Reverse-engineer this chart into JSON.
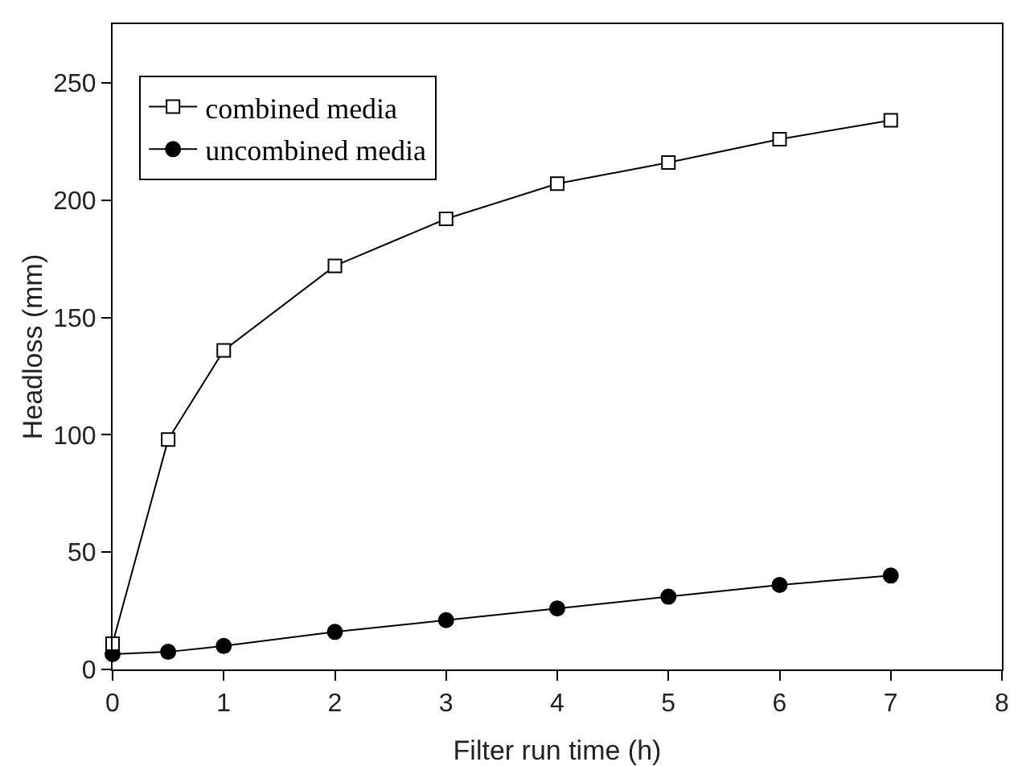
{
  "chart_data": {
    "type": "line",
    "xlabel": "Filter run time (h)",
    "ylabel": "Headloss (mm)",
    "x": [
      0,
      0.5,
      1,
      2,
      3,
      4,
      5,
      6,
      7
    ],
    "series": [
      {
        "name": "combined media",
        "color": "#000000",
        "marker": "square-open",
        "values": [
          11,
          98,
          136,
          172,
          192,
          207,
          216,
          226,
          234
        ]
      },
      {
        "name": "uncombined media",
        "color": "#000000",
        "marker": "circle",
        "values": [
          6.5,
          7.5,
          10,
          16,
          21,
          26,
          31,
          36,
          40
        ]
      }
    ],
    "xlim": [
      0,
      8
    ],
    "xticks": [
      0,
      1,
      2,
      3,
      4,
      5,
      6,
      7,
      8
    ],
    "ylim": [
      0,
      275
    ],
    "yticks": [
      0,
      50,
      100,
      150,
      200,
      250
    ],
    "grid": false,
    "legend": "top left",
    "line_style": "solid"
  }
}
